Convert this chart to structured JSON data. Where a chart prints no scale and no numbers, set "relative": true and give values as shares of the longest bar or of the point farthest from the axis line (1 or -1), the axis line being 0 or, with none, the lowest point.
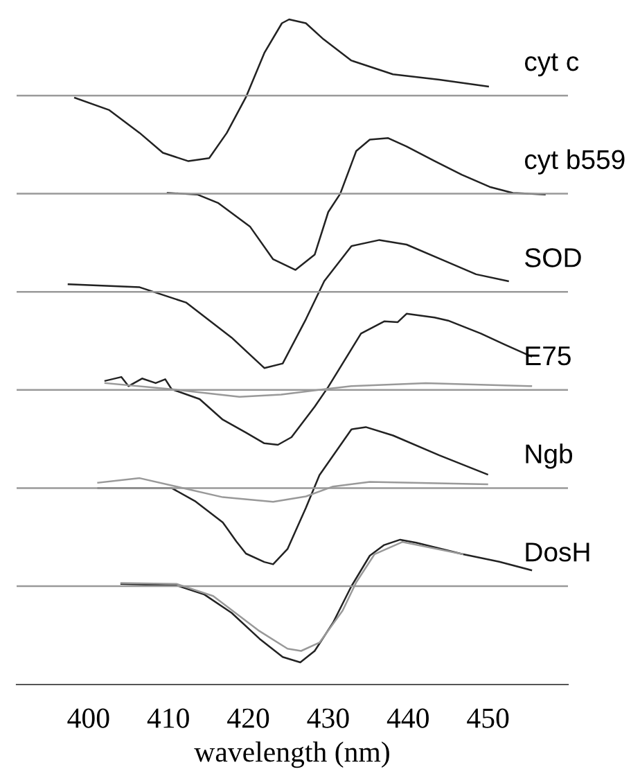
{
  "chart_data": [
    {
      "type": "line",
      "relative": true,
      "xlim": [
        391,
        460
      ],
      "xticks": [
        400,
        410,
        420,
        430,
        440,
        450
      ],
      "tick_labels": false,
      "ref_lines": [
        {
          "axis": "y",
          "value": 0,
          "color": "#999999"
        }
      ],
      "series": [
        {
          "name": "cyt c",
          "color": "#222222",
          "x": [
            398.3,
            402.6,
            406.4,
            409.3,
            412.5,
            415.1,
            417.3,
            419.7,
            422.0,
            424.2,
            425.1,
            427.2,
            429.4,
            432.9,
            438.1,
            443.9,
            450.0
          ],
          "values": [
            -0.03,
            -0.19,
            -0.49,
            -0.75,
            -0.86,
            -0.82,
            -0.49,
            -0.02,
            0.56,
            0.95,
            1.0,
            0.95,
            0.74,
            0.46,
            0.28,
            0.21,
            0.12
          ]
        }
      ]
    },
    {
      "type": "line",
      "relative": true,
      "xlim": [
        391,
        460
      ],
      "xticks": [
        400,
        410,
        420,
        430,
        440,
        450
      ],
      "tick_labels": false,
      "ref_lines": [
        {
          "axis": "y",
          "value": 0,
          "color": "#999999"
        }
      ],
      "series": [
        {
          "name": "cyt b559",
          "color": "#222222",
          "x": [
            409.9,
            413.6,
            416.2,
            420.2,
            423.1,
            425.9,
            428.3,
            430.0,
            431.5,
            433.5,
            435.2,
            437.5,
            439.8,
            443.3,
            446.7,
            450.2,
            453.1,
            457.1
          ],
          "values": [
            0.01,
            -0.01,
            -0.12,
            -0.43,
            -0.86,
            -1.0,
            -0.8,
            -0.24,
            0,
            0.56,
            0.71,
            0.73,
            0.62,
            0.43,
            0.25,
            0.09,
            0.01,
            -0.01
          ]
        }
      ]
    },
    {
      "type": "line",
      "relative": true,
      "xlim": [
        391,
        460
      ],
      "xticks": [
        400,
        410,
        420,
        430,
        440,
        450
      ],
      "tick_labels": false,
      "ref_lines": [
        {
          "axis": "y",
          "value": 0,
          "color": "#999999"
        }
      ],
      "series": [
        {
          "name": "SOD",
          "color": "#222222",
          "x": [
            397.5,
            406.4,
            412.2,
            417.9,
            422.0,
            424.3,
            427.2,
            429.5,
            432.9,
            436.4,
            439.8,
            444.5,
            448.5,
            452.5
          ],
          "values": [
            0.1,
            0.06,
            -0.14,
            -0.6,
            -1.0,
            -0.94,
            -0.36,
            0.14,
            0.6,
            0.68,
            0.62,
            0.41,
            0.23,
            0.14
          ]
        }
      ]
    },
    {
      "type": "line",
      "relative": true,
      "xlim": [
        391,
        460
      ],
      "xticks": [
        400,
        410,
        420,
        430,
        440,
        450
      ],
      "tick_labels": false,
      "ref_lines": [
        {
          "axis": "y",
          "value": 0,
          "color": "#999999"
        }
      ],
      "series": [
        {
          "name": "E75",
          "color": "#222222",
          "x": [
            402.1,
            404.1,
            405.0,
            406.7,
            408.4,
            409.6,
            410.4,
            413.9,
            416.8,
            419.7,
            422.0,
            423.7,
            425.4,
            428.3,
            430.0,
            434.1,
            437.0,
            438.7,
            439.8,
            443.3,
            445.0,
            449.1,
            452.0,
            455.4
          ],
          "values": [
            0.12,
            0.17,
            0.05,
            0.15,
            0.09,
            0.14,
            0.01,
            -0.12,
            -0.39,
            -0.56,
            -0.7,
            -0.72,
            -0.62,
            -0.22,
            0.04,
            0.74,
            0.9,
            0.89,
            1.0,
            0.95,
            0.91,
            0.74,
            0.6,
            0.44
          ]
        },
        {
          "color": "#999999",
          "x": [
            402.1,
            410.4,
            418.9,
            424.1,
            429.5,
            432.9,
            442.2,
            455.4
          ],
          "values": [
            0.09,
            0.01,
            -0.09,
            -0.06,
            0.01,
            0.05,
            0.09,
            0.05
          ]
        }
      ]
    },
    {
      "type": "line",
      "relative": true,
      "xlim": [
        391,
        460
      ],
      "xticks": [
        400,
        410,
        420,
        430,
        440,
        450
      ],
      "tick_labels": false,
      "ref_lines": [
        {
          "axis": "y",
          "value": 0,
          "color": "#999999"
        }
      ],
      "series": [
        {
          "name": "Ngb",
          "color": "#222222",
          "x": [
            401.2,
            410.4,
            413.3,
            416.8,
            418.5,
            419.7,
            422.0,
            423.1,
            424.9,
            427.2,
            428.9,
            432.9,
            434.7,
            438.1,
            443.9,
            449.9
          ],
          "values": [
            0.0,
            0.0,
            -0.17,
            -0.45,
            -0.7,
            -0.86,
            -0.97,
            -1.0,
            -0.8,
            -0.26,
            0.17,
            0.77,
            0.8,
            0.69,
            0.43,
            0.18
          ]
        },
        {
          "color": "#999999",
          "x": [
            401.2,
            406.4,
            411.0,
            416.8,
            423.1,
            427.2,
            430.6,
            435.2,
            449.9
          ],
          "values": [
            0.07,
            0.13,
            0.02,
            -0.12,
            -0.18,
            -0.11,
            0.02,
            0.08,
            0.05
          ]
        }
      ]
    },
    {
      "type": "line",
      "relative": true,
      "xlim": [
        391,
        460
      ],
      "xticks": [
        400,
        410,
        420,
        430,
        440,
        450
      ],
      "xlabel": "wavelength (nm)",
      "tick_labels": "x",
      "ref_lines": [
        {
          "axis": "y",
          "value": 0,
          "color": "#999999"
        }
      ],
      "series": [
        {
          "name": "DosH",
          "color": "#222222",
          "x": [
            404.1,
            411.0,
            414.5,
            417.9,
            421.4,
            424.3,
            426.5,
            428.3,
            430.6,
            432.9,
            435.2,
            437.0,
            439.0,
            441.0,
            446.8,
            451.4,
            455.4
          ],
          "values": [
            0.03,
            0.01,
            -0.11,
            -0.35,
            -0.69,
            -0.93,
            -1.0,
            -0.85,
            -0.48,
            0,
            0.4,
            0.54,
            0.61,
            0.57,
            0.42,
            0.32,
            0.21
          ]
        },
        {
          "color": "#999999",
          "x": [
            404.1,
            411.0,
            415.6,
            421.4,
            424.9,
            426.6,
            428.9,
            431.8,
            433.5,
            435.8,
            439.3,
            446.8
          ],
          "values": [
            0.04,
            0.03,
            -0.13,
            -0.59,
            -0.82,
            -0.85,
            -0.74,
            -0.32,
            0.05,
            0.42,
            0.58,
            0.42
          ]
        }
      ]
    }
  ]
}
